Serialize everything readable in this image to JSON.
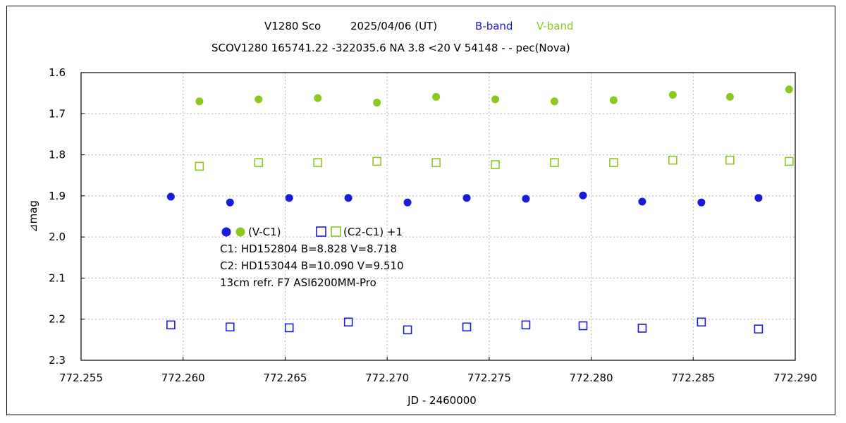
{
  "chart_data": {
    "type": "scatter",
    "title": {
      "object": "V1280 Sco",
      "date": "2025/04/06 (UT)",
      "band_b": "B-band",
      "band_v": "V-band"
    },
    "subtitle": "SCOV1280 165741.22 -322035.6 NA 3.8 <20 V 54148 - - pec(Nova)",
    "xlabel": "JD - 2460000",
    "ylabel": "⊿mag",
    "xlim": [
      772.255,
      772.29
    ],
    "ylim": [
      2.3,
      1.6
    ],
    "y_inverted": true,
    "grid": true,
    "xticks": [
      "772.255",
      "772.260",
      "772.265",
      "772.270",
      "772.275",
      "772.280",
      "772.285",
      "772.290"
    ],
    "yticks": [
      "1.6",
      "1.7",
      "1.8",
      "1.9",
      "2.0",
      "2.1",
      "2.2",
      "2.3"
    ],
    "colors": {
      "b_band": "#1a1adc",
      "v_band": "#8cc81e"
    },
    "legend": {
      "var_label": "(V-C1)",
      "check_label": "(C2-C1) +1",
      "c1": "C1: HD152804  B=8.828  V=8.718",
      "c2": "C2: HD153044  B=10.090  V=9.510",
      "instrument": "13cm  refr.  F7     ASI6200MM-Pro"
    },
    "series": [
      {
        "name": "(V-C1) B-band",
        "band": "B",
        "marker": "filled-circle",
        "x": [
          772.2594,
          772.2623,
          772.2652,
          772.2681,
          772.271,
          772.2739,
          772.2768,
          772.2796,
          772.2825,
          772.2854,
          772.2882
        ],
        "y": [
          1.902,
          1.916,
          1.905,
          1.905,
          1.916,
          1.905,
          1.907,
          1.899,
          1.914,
          1.916,
          1.905
        ]
      },
      {
        "name": "(V-C1) V-band",
        "band": "V",
        "marker": "filled-circle",
        "x": [
          772.2608,
          772.2637,
          772.2666,
          772.2695,
          772.2724,
          772.2753,
          772.2782,
          772.2811,
          772.284,
          772.2868,
          772.2897
        ],
        "y": [
          1.67,
          1.665,
          1.662,
          1.673,
          1.659,
          1.665,
          1.67,
          1.667,
          1.654,
          1.659,
          1.641
        ]
      },
      {
        "name": "(C2-C1) +1 B-band",
        "band": "B",
        "marker": "open-square",
        "x": [
          772.2594,
          772.2623,
          772.2652,
          772.2681,
          772.271,
          772.2739,
          772.2768,
          772.2796,
          772.2825,
          772.2854,
          772.2882
        ],
        "y": [
          2.214,
          2.219,
          2.221,
          2.207,
          2.226,
          2.219,
          2.214,
          2.216,
          2.222,
          2.207,
          2.224
        ]
      },
      {
        "name": "(C2-C1) +1 V-band",
        "band": "V",
        "marker": "open-square",
        "x": [
          772.2608,
          772.2637,
          772.2666,
          772.2695,
          772.2724,
          772.2753,
          772.2782,
          772.2811,
          772.284,
          772.2868,
          772.2897
        ],
        "y": [
          1.828,
          1.819,
          1.819,
          1.816,
          1.819,
          1.824,
          1.819,
          1.819,
          1.813,
          1.813,
          1.816
        ]
      }
    ]
  }
}
